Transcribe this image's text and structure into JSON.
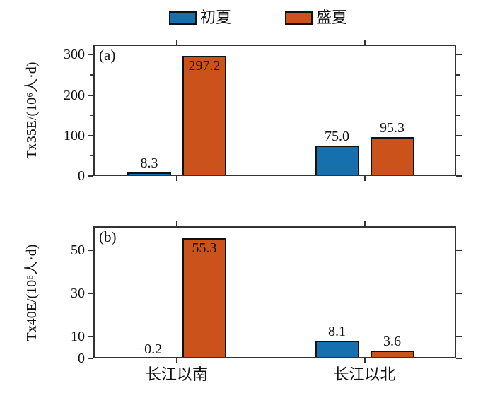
{
  "legend": {
    "position": "top-center",
    "items": [
      {
        "key": "early-summer",
        "label": "初夏",
        "color": "#1670ad"
      },
      {
        "key": "midsummer",
        "label": "盛夏",
        "color": "#cc521c"
      }
    ]
  },
  "chart_data": {
    "type": "bar",
    "categories": [
      "长江以南",
      "长江以北"
    ],
    "series_names": [
      "初夏",
      "盛夏"
    ],
    "panels": [
      {
        "tag": "(a)",
        "ylabel": "Tx35E/(10⁶人·d)",
        "ylim": [
          0,
          325
        ],
        "yticks_labeled": [
          0,
          100,
          200,
          300
        ],
        "yticks_minor": [
          50,
          150,
          250
        ],
        "grid": false,
        "series": [
          {
            "name": "初夏",
            "color": "#1670ad",
            "points": [
              {
                "value": 8.3,
                "label": "8.3",
                "label_pos": "above"
              },
              {
                "value": 75.0,
                "label": "75.0",
                "label_pos": "above"
              }
            ]
          },
          {
            "name": "盛夏",
            "color": "#cc521c",
            "points": [
              {
                "value": 297.2,
                "label": "297.2",
                "label_pos": "inside"
              },
              {
                "value": 95.3,
                "label": "95.3",
                "label_pos": "above"
              }
            ]
          }
        ]
      },
      {
        "tag": "(b)",
        "ylabel": "Tx40E/(10⁶人·d)",
        "ylim": [
          0,
          61
        ],
        "yticks_labeled": [
          0,
          10,
          30,
          50
        ],
        "yticks_minor": [],
        "grid": false,
        "series": [
          {
            "name": "初夏",
            "color": "#1670ad",
            "points": [
              {
                "value": -0.2,
                "label": "−0.2",
                "label_pos": "above"
              },
              {
                "value": 8.1,
                "label": "8.1",
                "label_pos": "above"
              }
            ]
          },
          {
            "name": "盛夏",
            "color": "#cc521c",
            "points": [
              {
                "value": 55.3,
                "label": "55.3",
                "label_pos": "inside"
              },
              {
                "value": 3.6,
                "label": "3.6",
                "label_pos": "above"
              }
            ]
          }
        ]
      }
    ]
  },
  "colors": {
    "early_summer": "#1670ad",
    "midsummer": "#cc521c",
    "axis": "#333333",
    "text": "#111111",
    "background": "#ffffff"
  }
}
